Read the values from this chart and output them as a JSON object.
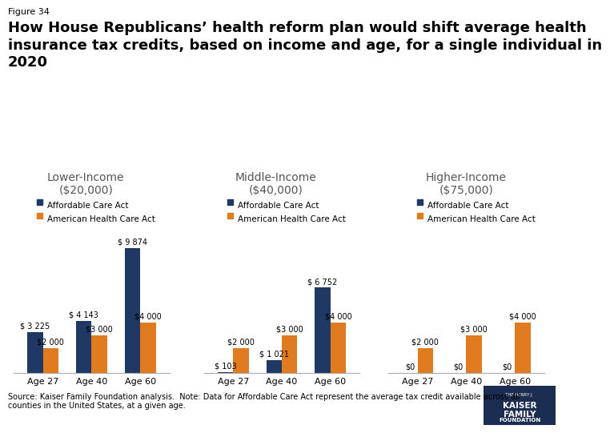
{
  "figure_label": "Figure 34",
  "title": "How House Republicans’ health reform plan would shift average health\ninsurance tax credits, based on income and age, for a single individual in\n2020",
  "income_groups": [
    {
      "label": "Lower-Income\n($20,000)",
      "ages": [
        "Age 27",
        "Age 40",
        "Age 60"
      ],
      "aca": [
        3225,
        4143,
        9874
      ],
      "ahca": [
        2000,
        3000,
        4000
      ]
    },
    {
      "label": "Middle-Income\n($40,000)",
      "ages": [
        "Age 27",
        "Age 40",
        "Age 60"
      ],
      "aca": [
        103,
        1021,
        6752
      ],
      "ahca": [
        2000,
        3000,
        4000
      ]
    },
    {
      "label": "Higher-Income\n($75,000)",
      "ages": [
        "Age 27",
        "Age 40",
        "Age 60"
      ],
      "aca": [
        0,
        0,
        0
      ],
      "ahca": [
        2000,
        3000,
        4000
      ]
    }
  ],
  "aca_color": "#1f3864",
  "ahca_color": "#e07b20",
  "aca_label": "Affordable Care Act",
  "ahca_label": "American Health Care Act",
  "value_labels": {
    "lower": {
      "aca": [
        "$ 3 225",
        "$ 4 143",
        "$ 9 874"
      ],
      "ahca": [
        "$2 000",
        "$3 000",
        "$4 000"
      ]
    },
    "middle": {
      "aca": [
        "$ 103",
        "$ 1 021",
        "$ 6 752"
      ],
      "ahca": [
        "$2 000",
        "$3 000",
        "$4 000"
      ]
    },
    "higher": {
      "aca": [
        "$0",
        "$0",
        "$0"
      ],
      "ahca": [
        "$2 000",
        "$3 000",
        "$4 000"
      ]
    }
  },
  "source_text": "Source: Kaiser Family Foundation analysis.  Note: Data for Affordable Care Act represent the average tax credit available across all\ncounties in the United States, at a given age.",
  "background_color": "#ffffff",
  "fig_label_fontsize": 8,
  "title_fontsize": 13,
  "group_title_fontsize": 10,
  "legend_fontsize": 7.5,
  "bar_label_fontsize": 7,
  "age_label_fontsize": 8,
  "source_fontsize": 7
}
